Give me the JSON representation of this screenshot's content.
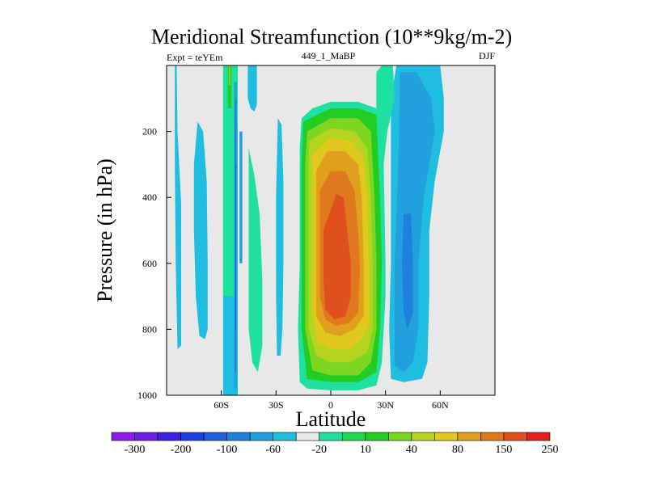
{
  "chart_data": {
    "type": "contour",
    "title": "Meridional Streamfunction (10**9kg/m-2)",
    "subtitle_left": "Expt = teYEm",
    "subtitle_center": "449_1_MaBP",
    "subtitle_right": "DJF",
    "xlabel": "Latitude",
    "ylabel": "Pressure (in hPa)",
    "xlim": [
      -90,
      90
    ],
    "ylim": [
      0,
      1000
    ],
    "y_inverted": true,
    "xticks": [
      {
        "value": -60,
        "label": "60S"
      },
      {
        "value": -30,
        "label": "30S"
      },
      {
        "value": 0,
        "label": "0"
      },
      {
        "value": 30,
        "label": "30N"
      },
      {
        "value": 60,
        "label": "60N"
      }
    ],
    "yticks": [
      {
        "value": 200,
        "label": "200"
      },
      {
        "value": 400,
        "label": "400"
      },
      {
        "value": 600,
        "label": "600"
      },
      {
        "value": 800,
        "label": "800"
      },
      {
        "value": 1000,
        "label": "1000"
      }
    ],
    "colorbar": {
      "colors": [
        "#8c1ce6",
        "#6a1ee3",
        "#3f1fe0",
        "#1f3ee0",
        "#1e5fdc",
        "#1f80de",
        "#20a0dc",
        "#1fbde0",
        "#e8e8e8",
        "#1ee0a0",
        "#1ed84f",
        "#22cc22",
        "#7ed620",
        "#b4d41f",
        "#e0c81e",
        "#e0a01e",
        "#e0781e",
        "#e04f1e",
        "#e0201e"
      ],
      "labels": [
        "-300",
        "-200",
        "-100",
        "-60",
        "-20",
        "10",
        "40",
        "80",
        "150",
        "250"
      ]
    },
    "background_color": "#e8e8e8",
    "regions": [
      {
        "name": "westmost-narrow",
        "color": "#1fbde0",
        "points": [
          [
            -85.5,
            0
          ],
          [
            -84.5,
            0
          ],
          [
            -84,
            200
          ],
          [
            -82,
            420
          ],
          [
            -82,
            650
          ],
          [
            -82,
            850
          ],
          [
            -84,
            860
          ],
          [
            -85,
            600
          ],
          [
            -85.5,
            300
          ]
        ]
      },
      {
        "name": "60S-southern-band",
        "color": "#1fbde0",
        "points": [
          [
            -73,
            170
          ],
          [
            -70,
            200
          ],
          [
            -68,
            350
          ],
          [
            -67.5,
            600
          ],
          [
            -67.5,
            800
          ],
          [
            -69,
            830
          ],
          [
            -72,
            820
          ],
          [
            -74,
            700
          ],
          [
            -75,
            500
          ],
          [
            -75,
            300
          ]
        ]
      },
      {
        "name": "50S-column-outer",
        "color": "#1fbde0",
        "points": [
          [
            -59,
            0
          ],
          [
            -51,
            0
          ],
          [
            -51,
            1000
          ],
          [
            -59,
            1000
          ]
        ]
      },
      {
        "name": "50S-column-green",
        "color": "#1ee0a0",
        "points": [
          [
            -59,
            0
          ],
          [
            -52.5,
            0
          ],
          [
            -52.5,
            700
          ],
          [
            -59,
            700
          ]
        ]
      },
      {
        "name": "50S-column-green2",
        "color": "#1ee0a0",
        "points": [
          [
            -55,
            0
          ],
          [
            -51,
            0
          ],
          [
            -51,
            180
          ],
          [
            -55,
            180
          ]
        ]
      },
      {
        "name": "50S-column-lightgreen",
        "color": "#22cc22",
        "points": [
          [
            -56.5,
            0
          ],
          [
            -54.5,
            0
          ],
          [
            -54.5,
            130
          ],
          [
            -56.5,
            130
          ]
        ]
      },
      {
        "name": "50S-column-yellowgreen",
        "color": "#7ed620",
        "points": [
          [
            -56,
            0
          ],
          [
            -55,
            0
          ],
          [
            -55,
            60
          ],
          [
            -56,
            60
          ]
        ]
      },
      {
        "name": "50S-column-blue1",
        "color": "#20a0dc",
        "points": [
          [
            -53,
            50
          ],
          [
            -51.5,
            50
          ],
          [
            -51.5,
            980
          ],
          [
            -53,
            980
          ]
        ]
      },
      {
        "name": "50S-column-blue2",
        "color": "#1f80de",
        "points": [
          [
            -52.6,
            100
          ],
          [
            -51.8,
            100
          ],
          [
            -51.8,
            930
          ],
          [
            -52.6,
            930
          ]
        ]
      },
      {
        "name": "50S-column-blue3",
        "color": "#1e5fdc",
        "points": [
          [
            -52.4,
            300
          ],
          [
            -52,
            300
          ],
          [
            -52,
            800
          ],
          [
            -52.4,
            800
          ]
        ]
      },
      {
        "name": "45S-upper",
        "color": "#1fbde0",
        "points": [
          [
            -45.5,
            0
          ],
          [
            -40.5,
            0
          ],
          [
            -40.5,
            120
          ],
          [
            -42,
            140
          ],
          [
            -44,
            130
          ],
          [
            -45.5,
            100
          ]
        ]
      },
      {
        "name": "45S-lower-band",
        "color": "#1ee0a0",
        "points": [
          [
            -45,
            250
          ],
          [
            -42,
            330
          ],
          [
            -39,
            450
          ],
          [
            -37.5,
            650
          ],
          [
            -37.5,
            850
          ],
          [
            -40,
            930
          ],
          [
            -43,
            900
          ],
          [
            -45,
            800
          ]
        ]
      },
      {
        "name": "30S-band",
        "color": "#1fbde0",
        "points": [
          [
            -29,
            160
          ],
          [
            -27,
            180
          ],
          [
            -26,
            350
          ],
          [
            -26,
            600
          ],
          [
            -26.5,
            800
          ],
          [
            -27.5,
            880
          ],
          [
            -29.5,
            880
          ],
          [
            -30,
            700
          ],
          [
            -30,
            400
          ]
        ]
      },
      {
        "name": "south-blue-left",
        "color": "#20a0dc",
        "points": [
          [
            -50,
            200
          ],
          [
            -48.5,
            200
          ],
          [
            -48.5,
            600
          ],
          [
            -50,
            600
          ]
        ]
      },
      {
        "name": "north-cyan-outer",
        "color": "#1fbde0",
        "points": [
          [
            33,
            100
          ],
          [
            36,
            0
          ],
          [
            44,
            0
          ],
          [
            52,
            0
          ],
          [
            60,
            0
          ],
          [
            62,
            100
          ],
          [
            62,
            200
          ],
          [
            57,
            350
          ],
          [
            54,
            500
          ],
          [
            54,
            700
          ],
          [
            53,
            900
          ],
          [
            50,
            950
          ],
          [
            40,
            960
          ],
          [
            33,
            950
          ],
          [
            32,
            800
          ],
          [
            33,
            600
          ],
          [
            33,
            400
          ],
          [
            33,
            250
          ]
        ]
      },
      {
        "name": "north-blue-mid",
        "color": "#20a0dc",
        "points": [
          [
            38,
            20
          ],
          [
            47,
            20
          ],
          [
            55,
            100
          ],
          [
            57,
            200
          ],
          [
            51,
            400
          ],
          [
            48,
            600
          ],
          [
            48,
            800
          ],
          [
            45,
            900
          ],
          [
            40,
            930
          ],
          [
            35,
            910
          ],
          [
            35,
            600
          ],
          [
            37,
            300
          ]
        ]
      },
      {
        "name": "north-blue-inner",
        "color": "#1f80de",
        "points": [
          [
            40,
            450
          ],
          [
            44,
            450
          ],
          [
            45,
            600
          ],
          [
            45,
            750
          ],
          [
            42,
            800
          ],
          [
            40,
            750
          ],
          [
            39,
            600
          ]
        ]
      },
      {
        "name": "cell-outer",
        "color": "#1ee0a0",
        "points": [
          [
            -16,
            160
          ],
          [
            -10,
            130
          ],
          [
            0,
            110
          ],
          [
            15,
            110
          ],
          [
            25,
            130
          ],
          [
            25,
            20
          ],
          [
            28,
            0
          ],
          [
            34,
            0
          ],
          [
            35,
            100
          ],
          [
            31,
            200
          ],
          [
            29,
            300
          ],
          [
            30,
            600
          ],
          [
            30,
            700
          ],
          [
            28,
            900
          ],
          [
            25,
            970
          ],
          [
            15,
            985
          ],
          [
            0,
            985
          ],
          [
            -13,
            980
          ],
          [
            -17,
            960
          ],
          [
            -18,
            800
          ],
          [
            -17,
            600
          ],
          [
            -17,
            400
          ],
          [
            -17,
            250
          ]
        ]
      },
      {
        "name": "cell-green",
        "color": "#22cc22",
        "points": [
          [
            -15,
            170
          ],
          [
            0,
            130
          ],
          [
            15,
            130
          ],
          [
            25,
            150
          ],
          [
            27,
            400
          ],
          [
            28,
            600
          ],
          [
            27,
            800
          ],
          [
            25,
            930
          ],
          [
            15,
            960
          ],
          [
            0,
            960
          ],
          [
            -13,
            950
          ],
          [
            -16,
            800
          ],
          [
            -16,
            600
          ],
          [
            -16,
            300
          ]
        ]
      },
      {
        "name": "cell-yellowgreen",
        "color": "#7ed620",
        "points": [
          [
            -13,
            200
          ],
          [
            0,
            160
          ],
          [
            15,
            160
          ],
          [
            22,
            200
          ],
          [
            24,
            400
          ],
          [
            25,
            600
          ],
          [
            25,
            800
          ],
          [
            22,
            900
          ],
          [
            15,
            940
          ],
          [
            0,
            940
          ],
          [
            -10,
            925
          ],
          [
            -14,
            800
          ],
          [
            -14,
            600
          ],
          [
            -14,
            300
          ]
        ]
      },
      {
        "name": "cell-olive",
        "color": "#b4d41f",
        "points": [
          [
            -12,
            230
          ],
          [
            0,
            190
          ],
          [
            13,
            200
          ],
          [
            20,
            250
          ],
          [
            22,
            400
          ],
          [
            23,
            600
          ],
          [
            23,
            800
          ],
          [
            20,
            870
          ],
          [
            10,
            900
          ],
          [
            0,
            900
          ],
          [
            -8,
            880
          ],
          [
            -12,
            800
          ],
          [
            -12,
            600
          ],
          [
            -12,
            350
          ]
        ]
      },
      {
        "name": "cell-gold",
        "color": "#e0c81e",
        "points": [
          [
            -10,
            270
          ],
          [
            0,
            220
          ],
          [
            12,
            230
          ],
          [
            18,
            280
          ],
          [
            20,
            400
          ],
          [
            21,
            600
          ],
          [
            21,
            780
          ],
          [
            17,
            830
          ],
          [
            10,
            860
          ],
          [
            0,
            860
          ],
          [
            -7,
            840
          ],
          [
            -10,
            760
          ],
          [
            -10,
            600
          ],
          [
            -10,
            400
          ]
        ]
      },
      {
        "name": "cell-orange",
        "color": "#e0a01e",
        "points": [
          [
            -8,
            320
          ],
          [
            -2,
            260
          ],
          [
            8,
            260
          ],
          [
            15,
            300
          ],
          [
            17,
            400
          ],
          [
            18,
            600
          ],
          [
            18,
            760
          ],
          [
            13,
            800
          ],
          [
            5,
            820
          ],
          [
            -3,
            810
          ],
          [
            -8,
            760
          ],
          [
            -8,
            600
          ],
          [
            -8,
            450
          ]
        ]
      },
      {
        "name": "cell-darkorange",
        "color": "#e0781e",
        "points": [
          [
            -6,
            380
          ],
          [
            0,
            320
          ],
          [
            8,
            320
          ],
          [
            13,
            380
          ],
          [
            15,
            500
          ],
          [
            16,
            620
          ],
          [
            15,
            750
          ],
          [
            10,
            780
          ],
          [
            3,
            790
          ],
          [
            -3,
            770
          ],
          [
            -6,
            700
          ],
          [
            -6,
            550
          ]
        ]
      },
      {
        "name": "cell-redorange",
        "color": "#e04f1e",
        "points": [
          [
            -4,
            500
          ],
          [
            3,
            390
          ],
          [
            7,
            400
          ],
          [
            9,
            500
          ],
          [
            11,
            600
          ],
          [
            11,
            700
          ],
          [
            8,
            760
          ],
          [
            2,
            770
          ],
          [
            -3,
            740
          ],
          [
            -4,
            650
          ]
        ]
      }
    ]
  }
}
